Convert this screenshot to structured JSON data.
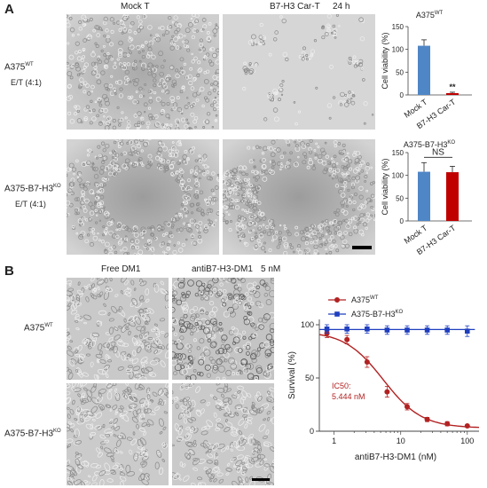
{
  "panel_a": {
    "letter": "A",
    "col_headers": [
      "Mock T",
      "B7-H3 Car-T"
    ],
    "time": "24 h",
    "rows": [
      {
        "cell_line": "A375",
        "sup": "WT",
        "ratio": "E/T (4:1)"
      },
      {
        "cell_line": "A375-B7-H3",
        "sup": "KO",
        "ratio": "E/T (4:1)"
      }
    ]
  },
  "panel_b": {
    "letter": "B",
    "col_headers": [
      "Free DM1",
      "antiB7-H3-DM1",
      "5 nM"
    ],
    "rows": [
      {
        "cell_line": "A375",
        "sup": "WT"
      },
      {
        "cell_line": "A375-B7-H3",
        "sup": "KO"
      }
    ]
  },
  "chart_data": [
    {
      "type": "bar",
      "title": "A375",
      "title_sup": "WT",
      "categories": [
        "Mock T",
        "B7-H3 Car-T"
      ],
      "values": [
        108,
        4
      ],
      "errors": [
        13,
        2
      ],
      "colors": [
        "#4f86c6",
        "#c00000"
      ],
      "ylabel": "Cell viability (%)",
      "ylim": [
        0,
        150
      ],
      "yticks": [
        "0",
        "50",
        "100",
        "150"
      ],
      "annotation": "**"
    },
    {
      "type": "bar",
      "title": "A375-B7-H3",
      "title_sup": "KO",
      "categories": [
        "Mock T",
        "B7-H3 Car-T"
      ],
      "values": [
        108,
        107
      ],
      "errors": [
        20,
        13
      ],
      "colors": [
        "#4f86c6",
        "#c00000"
      ],
      "ylabel": "Cell viability (%)",
      "ylim": [
        0,
        150
      ],
      "yticks": [
        "0",
        "50",
        "100",
        "150"
      ],
      "annotation": "NS"
    },
    {
      "type": "line",
      "xlabel": "antiB7-H3-DM1 (nM)",
      "ylabel": "Survival (%)",
      "xscale": "log",
      "xlim": [
        0.6,
        150
      ],
      "ylim": [
        0,
        105
      ],
      "xticks": [
        "1",
        "10",
        "100"
      ],
      "yticks": [
        "0",
        "50",
        "100"
      ],
      "legend_position": "top",
      "annotation": [
        "IC50:",
        "5.444 nM"
      ],
      "series": [
        {
          "name": "A375",
          "name_sup": "WT",
          "color": "#b22222",
          "marker": "circle",
          "x": [
            0.78,
            1.56,
            3.13,
            6.25,
            12.5,
            25,
            50,
            100
          ],
          "y": [
            92,
            86,
            65,
            37,
            23,
            11,
            7,
            5
          ],
          "err": [
            4,
            4,
            5,
            5,
            3,
            2,
            2,
            1
          ]
        },
        {
          "name": "A375-B7-H3",
          "name_sup": "KO",
          "color": "#1f3fbf",
          "marker": "square",
          "x": [
            0.78,
            1.56,
            3.13,
            6.25,
            12.5,
            25,
            50,
            100
          ],
          "y": [
            96,
            96,
            96,
            95,
            95,
            95,
            95,
            94
          ],
          "err": [
            4,
            4,
            4,
            4,
            4,
            4,
            4,
            5
          ]
        }
      ]
    }
  ]
}
